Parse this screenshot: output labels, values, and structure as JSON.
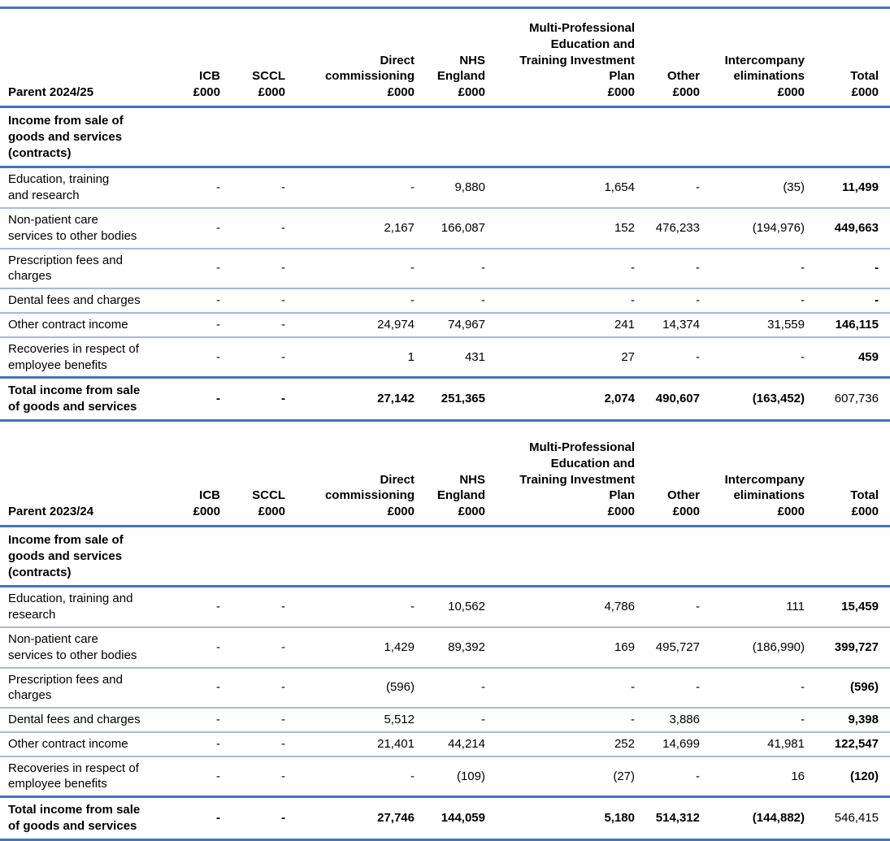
{
  "colors": {
    "accent_line": "#4472C4",
    "row_separator": "#A5BBDD",
    "text": "#000000",
    "background": "#FFFFFF"
  },
  "tables": [
    {
      "title": "Parent 2024/25",
      "top_border": true,
      "columns": [
        "ICB\n£000",
        "SCCL\n£000",
        "Direct\ncommissioning\n£000",
        "NHS\nEngland\n£000",
        "Multi-Professional\nEducation and\nTraining Investment\nPlan\n£000",
        "Other\n£000",
        "Intercompany\neliminations\n£000",
        "Total\n£000"
      ],
      "section_header": "Income from sale of\ngoods and services\n(contracts)",
      "rows": [
        {
          "label": "Education, training\nand research",
          "values": [
            "-",
            "-",
            "-",
            "9,880",
            "1,654",
            "-",
            "(35)",
            "11,499"
          ]
        },
        {
          "label": "Non-patient care\nservices to other bodies",
          "values": [
            "-",
            "-",
            "2,167",
            "166,087",
            "152",
            "476,233",
            "(194,976)",
            "449,663"
          ]
        },
        {
          "label": "Prescription fees and\ncharges",
          "values": [
            "-",
            "-",
            "-",
            "-",
            "-",
            "-",
            "-",
            "-"
          ]
        },
        {
          "label": "Dental fees and charges",
          "values": [
            "-",
            "-",
            "-",
            "-",
            "-",
            "-",
            "-",
            "-"
          ]
        },
        {
          "label": "Other contract income",
          "values": [
            "-",
            "-",
            "24,974",
            "74,967",
            "241",
            "14,374",
            "31,559",
            "146,115"
          ]
        },
        {
          "label": "Recoveries in respect of\nemployee benefits",
          "values": [
            "-",
            "-",
            "1",
            "431",
            "27",
            "-",
            "-",
            "459"
          ]
        }
      ],
      "total_row": {
        "label": "Total income from sale\nof goods and services",
        "values": [
          "-",
          "-",
          "27,142",
          "251,365",
          "2,074",
          "490,607",
          "(163,452)",
          "607,736"
        ]
      }
    },
    {
      "title": "Parent 2023/24",
      "top_border": false,
      "columns": [
        "ICB\n£000",
        "SCCL\n£000",
        "Direct\ncommissioning\n£000",
        "NHS\nEngland\n£000",
        "Multi-Professional\nEducation and\nTraining Investment\nPlan\n£000",
        "Other\n£000",
        "Intercompany\neliminations\n£000",
        "Total\n£000"
      ],
      "section_header": "Income from sale of\ngoods and services\n(contracts)",
      "rows": [
        {
          "label": "Education, training and\nresearch",
          "values": [
            "-",
            "-",
            "-",
            "10,562",
            "4,786",
            "-",
            "111",
            "15,459"
          ]
        },
        {
          "label": "Non-patient care\nservices to other bodies",
          "values": [
            "-",
            "-",
            "1,429",
            "89,392",
            "169",
            "495,727",
            "(186,990)",
            "399,727"
          ]
        },
        {
          "label": "Prescription fees and\ncharges",
          "values": [
            "-",
            "-",
            "(596)",
            "-",
            "-",
            "-",
            "-",
            "(596)"
          ]
        },
        {
          "label": "Dental fees and charges",
          "values": [
            "-",
            "-",
            "5,512",
            "-",
            "-",
            "3,886",
            "-",
            "9,398"
          ]
        },
        {
          "label": "Other contract income",
          "values": [
            "-",
            "-",
            "21,401",
            "44,214",
            "252",
            "14,699",
            "41,981",
            "122,547"
          ]
        },
        {
          "label": "Recoveries in respect of\nemployee benefits",
          "values": [
            "-",
            "-",
            "-",
            "(109)",
            "(27)",
            "-",
            "16",
            "(120)"
          ]
        }
      ],
      "total_row": {
        "label": "Total income from sale\nof goods and services",
        "values": [
          "-",
          "-",
          "27,746",
          "144,059",
          "5,180",
          "514,312",
          "(144,882)",
          "546,415"
        ]
      }
    }
  ]
}
